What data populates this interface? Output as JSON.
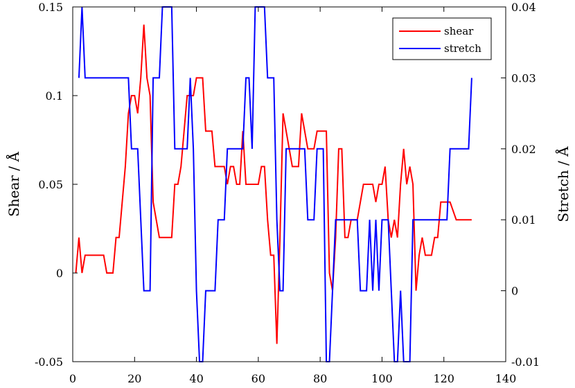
{
  "chart_data": {
    "type": "line",
    "xlabel": "",
    "ylabel": "Shear / Å",
    "y2label": "Stretch / Å",
    "xlim": [
      0,
      140
    ],
    "ylim": [
      -0.05,
      0.15
    ],
    "y2lim": [
      -0.01,
      0.04
    ],
    "xticks": [
      "0",
      "20",
      "40",
      "60",
      "80",
      "100",
      "120",
      "140"
    ],
    "yticks": [
      "-0.05",
      "0",
      "0.05",
      "0.1",
      "0.15"
    ],
    "y2ticks": [
      "-0.01",
      "0",
      "0.01",
      "0.02",
      "0.03",
      "0.04"
    ],
    "grid": false,
    "legend_position": "top-right",
    "series": [
      {
        "name": "shear",
        "axis": "left",
        "color": "#ff0000",
        "x": [
          1,
          2,
          3,
          4,
          10,
          11,
          13,
          14,
          15,
          16,
          17,
          18,
          19,
          20,
          21,
          22,
          23,
          24,
          25,
          26,
          27,
          28,
          30,
          32,
          33,
          34,
          35,
          36,
          37,
          38,
          39,
          40,
          41,
          42,
          43,
          44,
          45,
          46,
          48,
          49,
          50,
          51,
          52,
          53,
          54,
          55,
          56,
          58,
          59,
          60,
          61,
          62,
          63,
          64,
          65,
          66,
          67,
          68,
          69,
          70,
          71,
          72,
          73,
          74,
          75,
          76,
          77,
          78,
          79,
          80,
          81,
          82,
          83,
          84,
          85,
          86,
          87,
          88,
          89,
          90,
          91,
          92,
          93,
          94,
          95,
          96,
          97,
          98,
          99,
          100,
          101,
          102,
          103,
          104,
          105,
          106,
          107,
          108,
          109,
          110,
          111,
          112,
          113,
          114,
          115,
          116,
          117,
          118,
          119,
          120,
          121,
          122,
          124,
          125,
          126,
          127,
          128,
          129
        ],
        "y": [
          0,
          0.02,
          0,
          0.01,
          0.01,
          0,
          0,
          0.02,
          0.02,
          0.04,
          0.06,
          0.09,
          0.1,
          0.1,
          0.09,
          0.11,
          0.14,
          0.11,
          0.1,
          0.04,
          0.03,
          0.02,
          0.02,
          0.02,
          0.05,
          0.05,
          0.06,
          0.08,
          0.1,
          0.1,
          0.1,
          0.11,
          0.11,
          0.11,
          0.08,
          0.08,
          0.08,
          0.06,
          0.06,
          0.06,
          0.05,
          0.06,
          0.06,
          0.05,
          0.05,
          0.08,
          0.05,
          0.05,
          0.05,
          0.05,
          0.06,
          0.06,
          0.03,
          0.01,
          0.01,
          -0.04,
          0.02,
          0.09,
          0.08,
          0.07,
          0.06,
          0.06,
          0.06,
          0.09,
          0.08,
          0.07,
          0.07,
          0.07,
          0.08,
          0.08,
          0.08,
          0.08,
          0,
          -0.01,
          0.02,
          0.07,
          0.07,
          0.02,
          0.02,
          0.03,
          0.03,
          0.03,
          0.04,
          0.05,
          0.05,
          0.05,
          0.05,
          0.04,
          0.05,
          0.05,
          0.06,
          0.03,
          0.02,
          0.03,
          0.02,
          0.05,
          0.07,
          0.05,
          0.06,
          0.05,
          -0.01,
          0.01,
          0.02,
          0.01,
          0.01,
          0.01,
          0.02,
          0.02,
          0.04,
          0.04,
          0.04,
          0.04,
          0.03,
          0.03,
          0.03,
          0.03,
          0.03,
          0.03
        ]
      },
      {
        "name": "stretch",
        "axis": "right",
        "color": "#0000ff",
        "x": [
          2,
          3,
          4,
          9,
          18,
          19,
          20,
          21,
          22,
          23,
          24,
          25,
          26,
          27,
          28,
          29,
          30,
          31,
          32,
          33,
          34,
          35,
          36,
          37,
          38,
          39,
          40,
          41,
          42,
          43,
          44,
          45,
          46,
          47,
          48,
          49,
          50,
          51,
          52,
          53,
          54,
          55,
          56,
          57,
          58,
          59,
          60,
          61,
          62,
          63,
          64,
          65,
          66,
          67,
          68,
          69,
          70,
          71,
          72,
          73,
          74,
          75,
          76,
          77,
          78,
          79,
          80,
          81,
          82,
          83,
          84,
          85,
          86,
          87,
          88,
          89,
          90,
          91,
          92,
          93,
          94,
          95,
          96,
          97,
          98,
          99,
          100,
          101,
          102,
          103,
          104,
          105,
          106,
          107,
          108,
          109,
          110,
          111,
          112,
          113,
          114,
          115,
          116,
          117,
          118,
          119,
          120,
          121,
          122,
          123,
          124,
          125,
          126,
          127,
          128,
          129
        ],
        "y": [
          0.03,
          0.04,
          0.03,
          0.03,
          0.03,
          0.02,
          0.02,
          0.02,
          0.01,
          0,
          0,
          0,
          0.03,
          0.03,
          0.03,
          0.04,
          0.04,
          0.04,
          0.04,
          0.02,
          0.02,
          0.02,
          0.02,
          0.02,
          0.03,
          0.02,
          0,
          -0.01,
          -0.01,
          0,
          0,
          0,
          0,
          0.01,
          0.01,
          0.01,
          0.02,
          0.02,
          0.02,
          0.02,
          0.02,
          0.02,
          0.03,
          0.03,
          0.02,
          0.04,
          0.04,
          0.04,
          0.04,
          0.03,
          0.03,
          0.03,
          0.01,
          0,
          0,
          0.02,
          0.02,
          0.02,
          0.02,
          0.02,
          0.02,
          0.02,
          0.01,
          0.01,
          0.01,
          0.02,
          0.02,
          0.02,
          -0.01,
          -0.01,
          0,
          0.01,
          0.01,
          0.01,
          0.01,
          0.01,
          0.01,
          0.01,
          0.01,
          0,
          0,
          0,
          0.01,
          0,
          0.01,
          0,
          0.01,
          0.01,
          0.01,
          0,
          -0.01,
          -0.01,
          0,
          -0.01,
          -0.01,
          -0.01,
          0.01,
          0.01,
          0.01,
          0.01,
          0.01,
          0.01,
          0.01,
          0.01,
          0.01,
          0.01,
          0.01,
          0.01,
          0.02,
          0.02,
          0.02,
          0.02,
          0.02,
          0.02,
          0.02,
          0.03
        ]
      }
    ]
  }
}
